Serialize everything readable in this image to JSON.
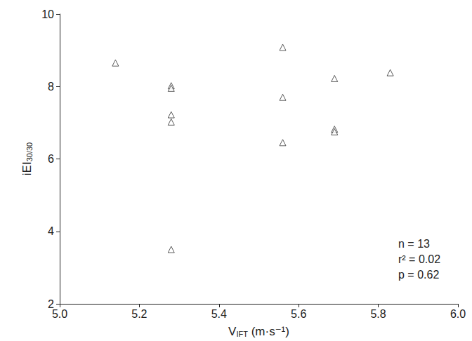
{
  "chart_data": {
    "type": "scatter",
    "x_label": {
      "text": "V",
      "subscript": "IFT",
      "suffix": " (m·s⁻¹)"
    },
    "y_label": {
      "text": "iEI",
      "subscript": "30/30"
    },
    "x": [
      5.14,
      5.28,
      5.28,
      5.28,
      5.28,
      5.28,
      5.56,
      5.56,
      5.56,
      5.69,
      5.69,
      5.69,
      5.83
    ],
    "values": [
      8.65,
      8.02,
      7.95,
      7.22,
      7.02,
      3.5,
      9.08,
      7.7,
      6.45,
      8.22,
      6.82,
      6.75,
      8.38
    ],
    "color": "#333333",
    "marker": "triangle",
    "xlim": [
      5,
      6
    ],
    "xticks": [
      {
        "value": 5,
        "label": "5.0"
      },
      5.2,
      5.4,
      5.6,
      5.8,
      {
        "value": 6,
        "label": "6.0"
      }
    ],
    "ylim": [
      2,
      10
    ],
    "yticks": [
      2,
      4,
      6,
      8,
      10
    ],
    "grid": false,
    "annotations": [
      "n = 13",
      "r² = 0.02",
      "p = 0.62"
    ]
  }
}
